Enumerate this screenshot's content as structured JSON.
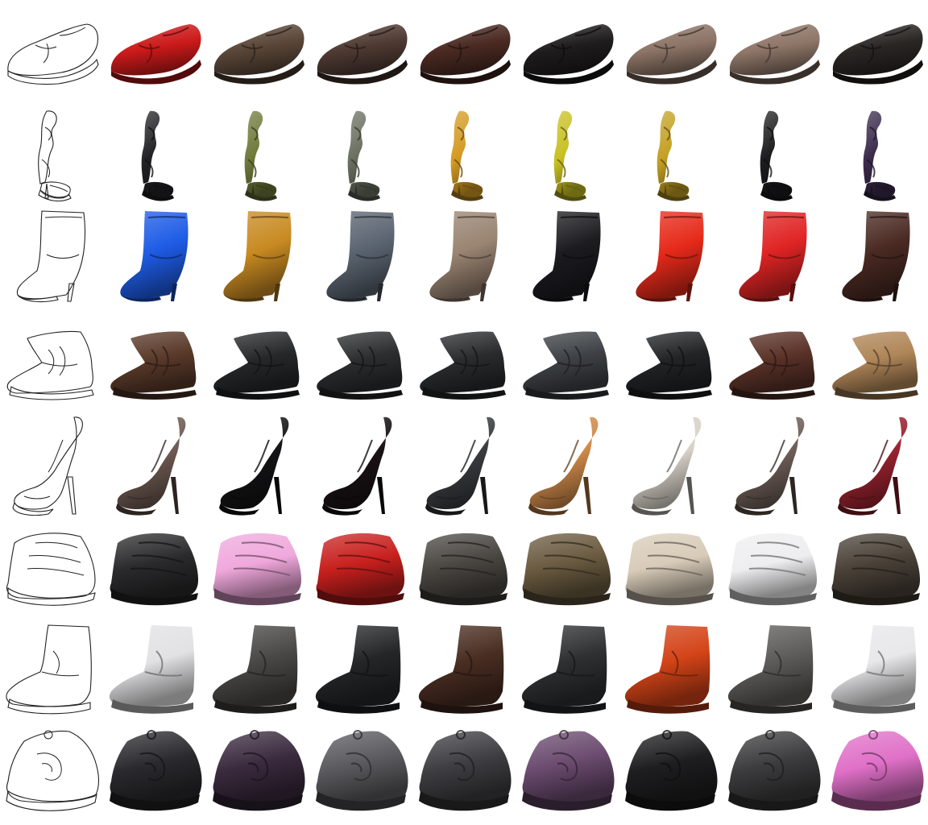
{
  "figure": {
    "rows": [
      {
        "id": "loafer",
        "shape": "loafer",
        "colors": [
          "#cc1a1a",
          "#5a4638",
          "#4e3a32",
          "#4a2a22",
          "#1e1c1c",
          "#8c7466",
          "#8e7668",
          "#2a2624"
        ]
      },
      {
        "id": "strappy-sandal",
        "shape": "sandal",
        "colors": [
          "#222226",
          "#6f7a3a",
          "#6a7060",
          "#d49a22",
          "#c8c022",
          "#c4a022",
          "#1c1c1e",
          "#3a2a4c"
        ]
      },
      {
        "id": "ankle-bootie",
        "shape": "bootie",
        "colors": [
          "#1e5ce6",
          "#c88a22",
          "#5a6470",
          "#9a8472",
          "#1c1c20",
          "#e62a1a",
          "#e02424",
          "#4a2a22"
        ]
      },
      {
        "id": "chukka-boot",
        "shape": "chukka",
        "colors": [
          "#5a3a2a",
          "#26282a",
          "#2c2e30",
          "#2a2c2e",
          "#3e4246",
          "#222426",
          "#5a3228",
          "#b08658"
        ]
      },
      {
        "id": "platform-pump",
        "shape": "pump",
        "colors": [
          "#6e5a52",
          "#141416",
          "#1a1214",
          "#3a3c40",
          "#d08a4a",
          "#d8d2c8",
          "#6e5e58",
          "#9a2230"
        ]
      },
      {
        "id": "velcro-sneaker",
        "shape": "sneaker",
        "colors": [
          "#2a2a2c",
          "#f0a8dc",
          "#c8201e",
          "#4a4642",
          "#6a5a40",
          "#d8cbb8",
          "#eeeef0",
          "#4a4238"
        ]
      },
      {
        "id": "work-boot",
        "shape": "workboot",
        "colors": [
          "#e2e2e4",
          "#4a4846",
          "#242628",
          "#4a2e22",
          "#2e3032",
          "#d44418",
          "#5e5c5a",
          "#e8e8ea"
        ]
      },
      {
        "id": "skate-sneaker",
        "shape": "skate",
        "colors": [
          "#2a2a2e",
          "#3a2a3e",
          "#5a5a5e",
          "#3e3e42",
          "#6a4a6e",
          "#1e1e20",
          "#3c3c3e",
          "#e070c8"
        ]
      }
    ]
  }
}
